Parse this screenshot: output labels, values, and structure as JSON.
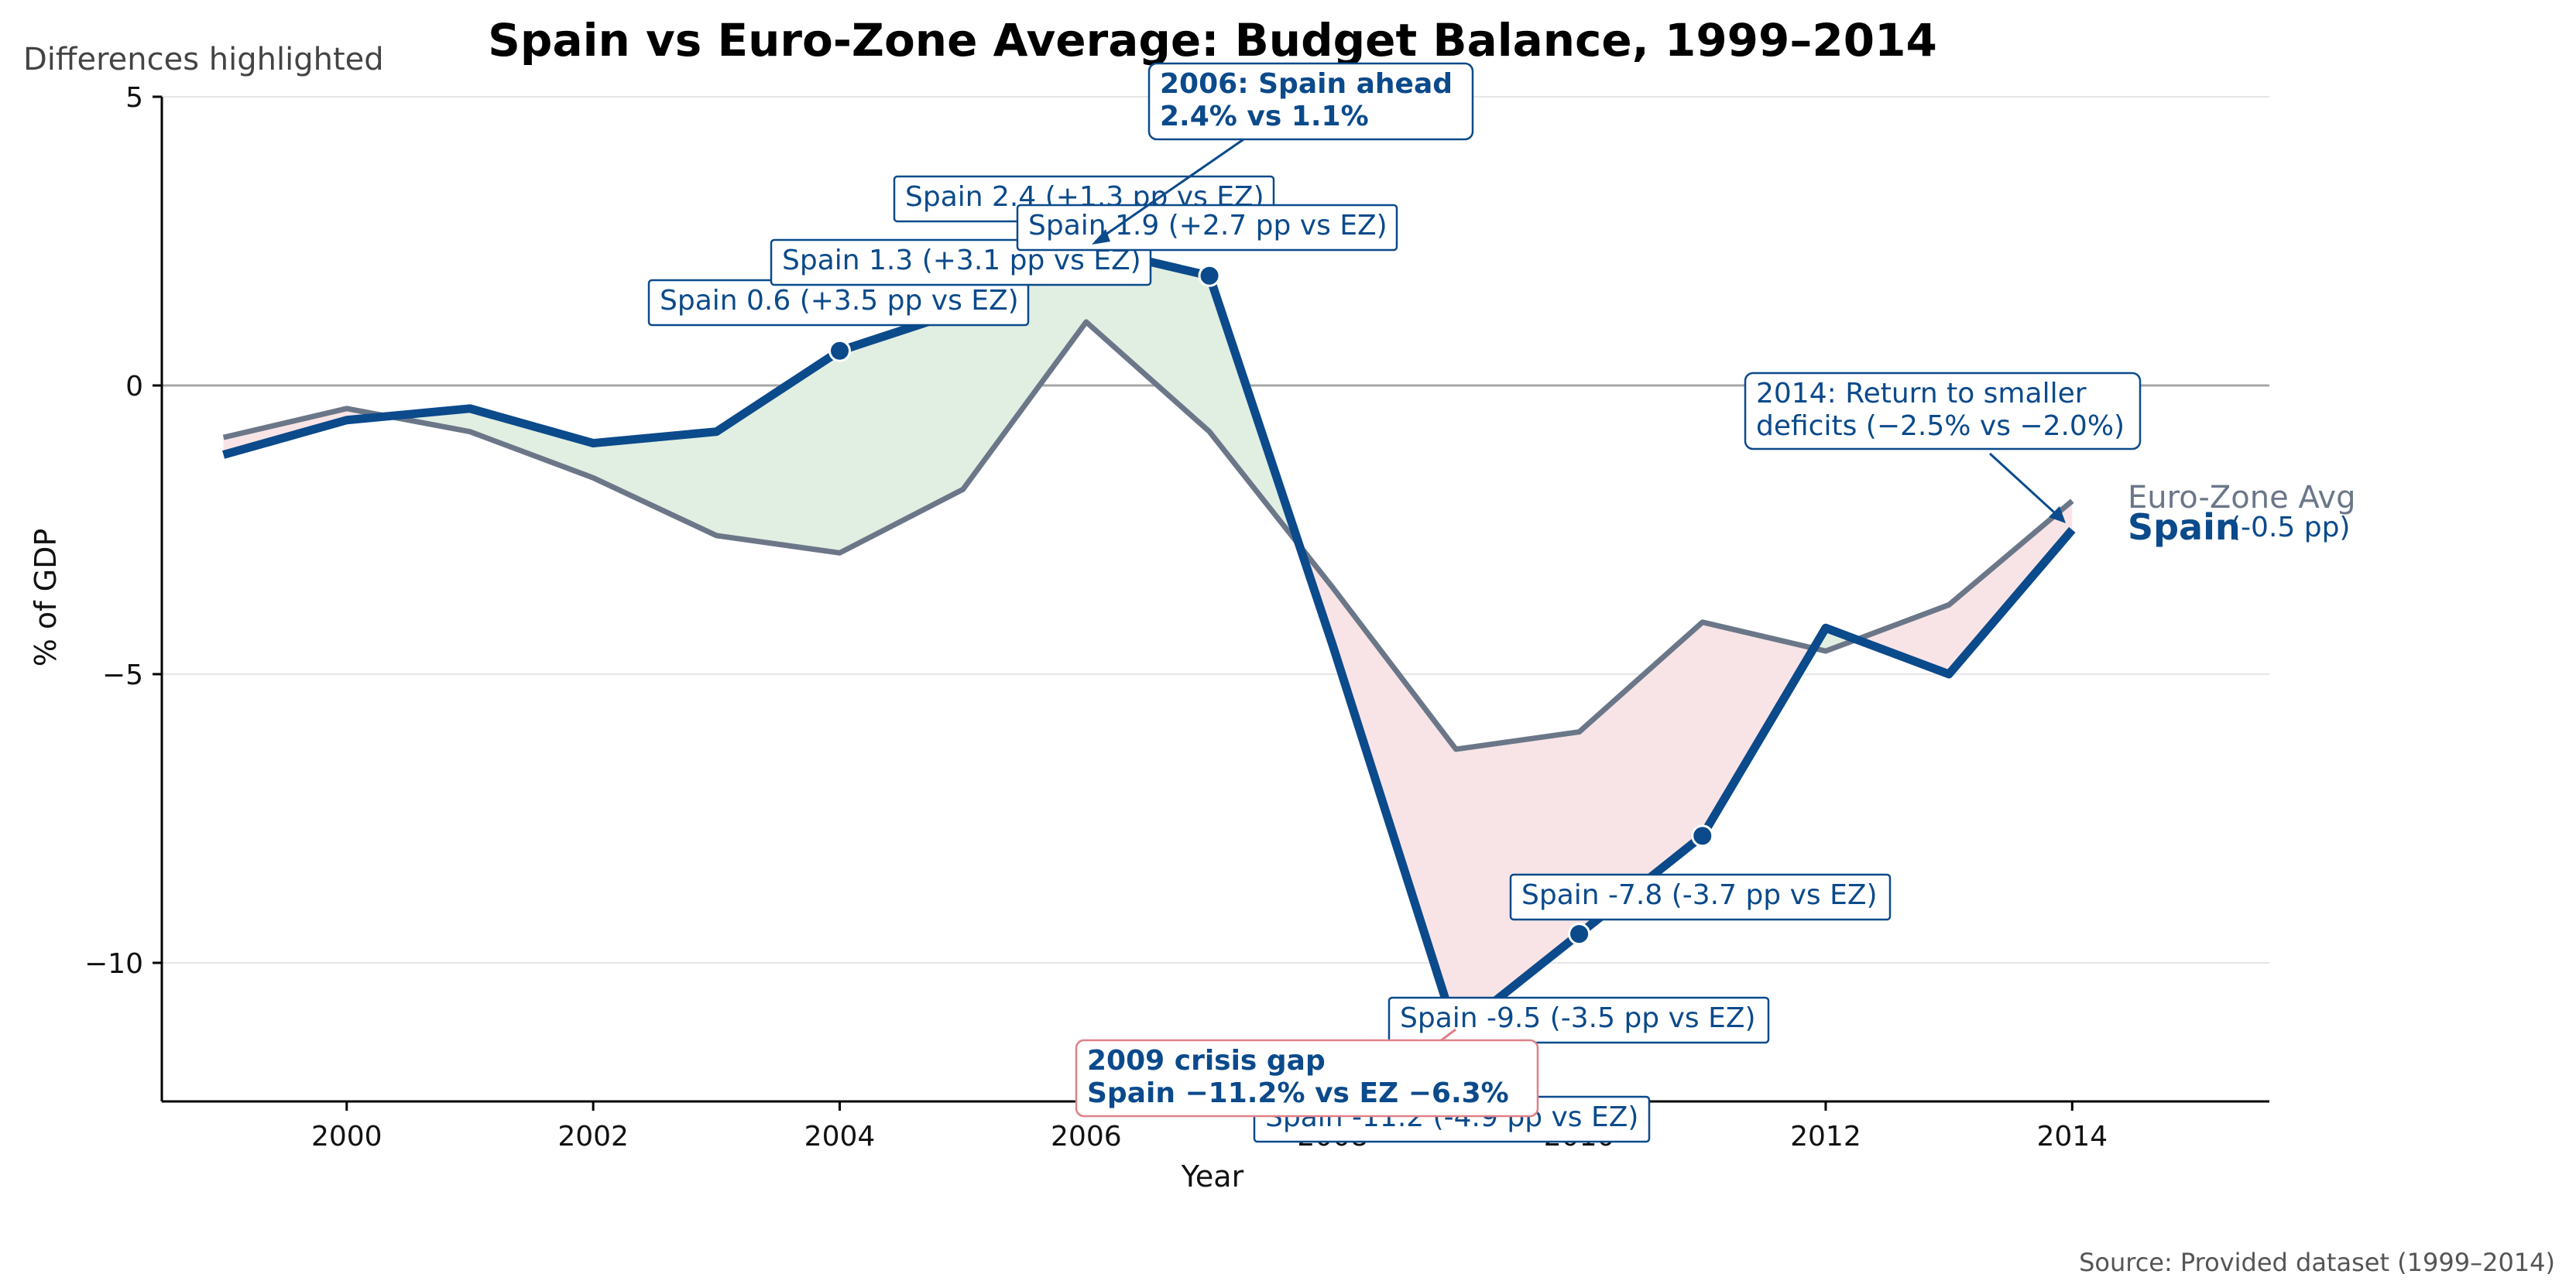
{
  "chart_data": {
    "type": "line",
    "title": "Spain vs Euro-Zone Average: Budget Balance, 1999–2014",
    "subtitle": "Differences highlighted",
    "xlabel": "Year",
    "ylabel": "% of GDP",
    "x": [
      1999,
      2000,
      2001,
      2002,
      2003,
      2004,
      2005,
      2006,
      2007,
      2008,
      2009,
      2010,
      2011,
      2012,
      2013,
      2014
    ],
    "series": [
      {
        "name": "Spain",
        "color": "#0b4a8b",
        "values": [
          -1.2,
          -0.6,
          -0.4,
          -1.0,
          -0.8,
          0.6,
          1.3,
          2.4,
          1.9,
          -4.5,
          -11.2,
          -9.5,
          -7.8,
          -4.2,
          -5.0,
          -2.5
        ]
      },
      {
        "name": "Euro-Zone Avg",
        "color": "#6b7788",
        "values": [
          -0.9,
          -0.4,
          -0.8,
          -1.6,
          -2.6,
          -2.9,
          -1.8,
          1.1,
          -0.8,
          -3.5,
          -6.3,
          -6.0,
          -4.1,
          -4.6,
          -3.8,
          -2.0
        ]
      }
    ],
    "xticks": [
      2000,
      2002,
      2004,
      2006,
      2008,
      2010,
      2012,
      2014
    ],
    "yticks": [
      5,
      0,
      -5,
      -10
    ],
    "ytick_labels": [
      "5",
      "0",
      "−5",
      "−10"
    ],
    "xlim": [
      1998.5,
      2015.6
    ],
    "ylim": [
      -12.4,
      5
    ],
    "grid": "horizontal",
    "reference_line": 0,
    "fill_colors": {
      "spain_ahead": "#e1eee2",
      "spain_behind": "#f8e4e6"
    },
    "point_labels": [
      {
        "text": "Spain 0.6 (+3.5 pp vs EZ)"
      },
      {
        "text": "Spain 1.3 (+3.1 pp vs EZ)"
      },
      {
        "text": "Spain 2.4 (+1.3 pp vs EZ)"
      },
      {
        "text": "Spain 1.9 (+2.7 pp vs EZ)"
      },
      {
        "text": "Spain -7.8 (-3.7 pp vs EZ)"
      },
      {
        "text": "Spain -9.5 (-3.5 pp vs EZ)"
      },
      {
        "text": "Spain -11.2 (-4.9 pp vs EZ)"
      }
    ],
    "marker_years": [
      2004,
      2007,
      2010,
      2011
    ],
    "annotations": [
      {
        "lines": [
          "2006: Spain ahead",
          "2.4% vs 1.1%"
        ],
        "bold": true,
        "border": "#0b4a8b"
      },
      {
        "lines": [
          "2009 crisis gap",
          "Spain −11.2% vs EZ −6.3%"
        ],
        "bold": true,
        "border": "#e08088"
      },
      {
        "lines": [
          "2014: Return to smaller",
          "deficits (−2.5% vs −2.0%)"
        ],
        "bold": false,
        "border": "#0b4a8b"
      }
    ],
    "end_labels": {
      "ez": "Euro-Zone Avg",
      "spain": "Spain",
      "spain_diff": "(-0.5 pp)"
    },
    "source": "Source: Provided dataset (1999–2014)"
  }
}
